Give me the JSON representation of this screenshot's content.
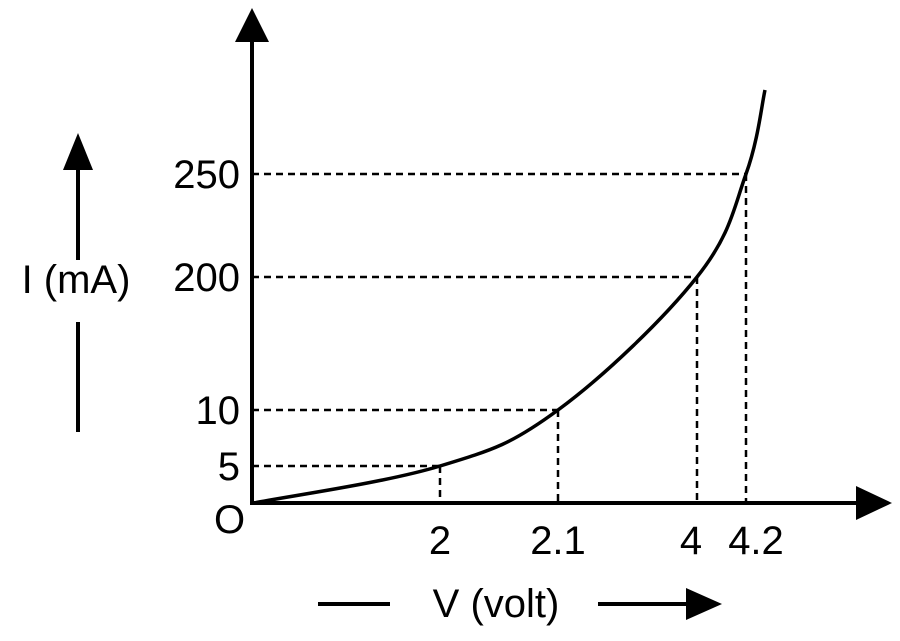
{
  "chart_data": {
    "type": "line",
    "title": "",
    "xlabel": "V (volt)",
    "ylabel": "I (mA)",
    "origin_label": "O",
    "x_tick_labels": [
      "2",
      "2.1",
      "4",
      "4.2"
    ],
    "y_tick_labels": [
      "5",
      "10",
      "200",
      "250"
    ],
    "series": [
      {
        "points": [
          {
            "x": 2,
            "y": 5
          },
          {
            "x": 2.1,
            "y": 10
          },
          {
            "x": 4,
            "y": 200
          },
          {
            "x": 4.2,
            "y": 250
          }
        ]
      }
    ],
    "guides": "dashed",
    "grid": false
  }
}
